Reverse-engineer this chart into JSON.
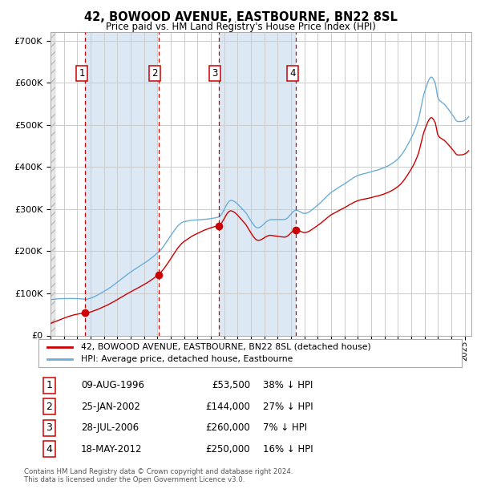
{
  "title": "42, BOWOOD AVENUE, EASTBOURNE, BN22 8SL",
  "subtitle": "Price paid vs. HM Land Registry's House Price Index (HPI)",
  "footer": "Contains HM Land Registry data © Crown copyright and database right 2024.\nThis data is licensed under the Open Government Licence v3.0.",
  "legend_line1": "42, BOWOOD AVENUE, EASTBOURNE, BN22 8SL (detached house)",
  "legend_line2": "HPI: Average price, detached house, Eastbourne",
  "transactions": [
    {
      "num": 1,
      "date_label": "09-AUG-1996",
      "price": 53500,
      "pct": "38% ↓ HPI",
      "year_x": 1996.6
    },
    {
      "num": 2,
      "date_label": "25-JAN-2002",
      "price": 144000,
      "pct": "27% ↓ HPI",
      "year_x": 2002.07
    },
    {
      "num": 3,
      "date_label": "28-JUL-2006",
      "price": 260000,
      "pct": "7% ↓ HPI",
      "year_x": 2006.57
    },
    {
      "num": 4,
      "date_label": "18-MAY-2012",
      "price": 250000,
      "pct": "16% ↓ HPI",
      "year_x": 2012.38
    }
  ],
  "hpi_color": "#6baed6",
  "price_color": "#cc0000",
  "dot_color": "#cc0000",
  "vline_color": "#cc0000",
  "grid_color": "#cccccc",
  "bg_color": "#dce9f5",
  "ylim": [
    0,
    720000
  ],
  "xlim_start": 1994,
  "xlim_end": 2025.5
}
